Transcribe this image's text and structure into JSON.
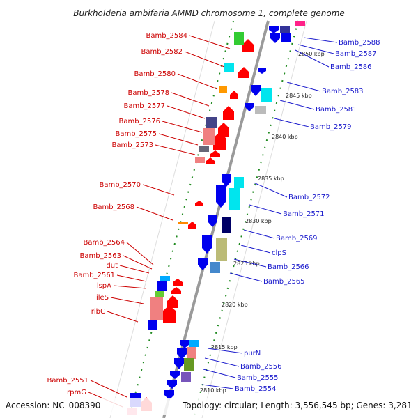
{
  "title": "Burkholderia ambifaria AMMD chromosome 1, complete genome",
  "accession": "Accession: NC_008390",
  "topology": "Topology: circular; Length: 3,556,545 bp; Genes: 3,281",
  "colors": {
    "backbone": "#9a9a9a",
    "tick": "#1f8a1f",
    "reverse_label": "#cc0000",
    "forward_label": "#1a1acc",
    "reverse_arrow": "#ff0000",
    "forward_arrow": "#0000ee"
  },
  "ticks": [
    "2850 kbp",
    "2845 kbp",
    "2840 kbp",
    "2835 kbp",
    "2830 kbp",
    "2825 kbp",
    "2820 kbp",
    "2815 kbp",
    "2810 kbp"
  ],
  "reverse_genes": [
    "Bamb_2584",
    "Bamb_2582",
    "Bamb_2580",
    "Bamb_2578",
    "Bamb_2577",
    "Bamb_2576",
    "Bamb_2575",
    "Bamb_2573",
    "Bamb_2570",
    "Bamb_2568",
    "Bamb_2564",
    "Bamb_2563",
    "dut",
    "Bamb_2561",
    "lspA",
    "ileS",
    "ribC",
    "Bamb_2551",
    "rpmG"
  ],
  "forward_genes": [
    "Bamb_2588",
    "Bamb_2587",
    "Bamb_2586",
    "Bamb_2583",
    "Bamb_2581",
    "Bamb_2579",
    "Bamb_2572",
    "Bamb_2571",
    "Bamb_2569",
    "clpS",
    "Bamb_2566",
    "Bamb_2565",
    "purN",
    "Bamb_2556",
    "Bamb_2555",
    "Bamb_2554"
  ]
}
